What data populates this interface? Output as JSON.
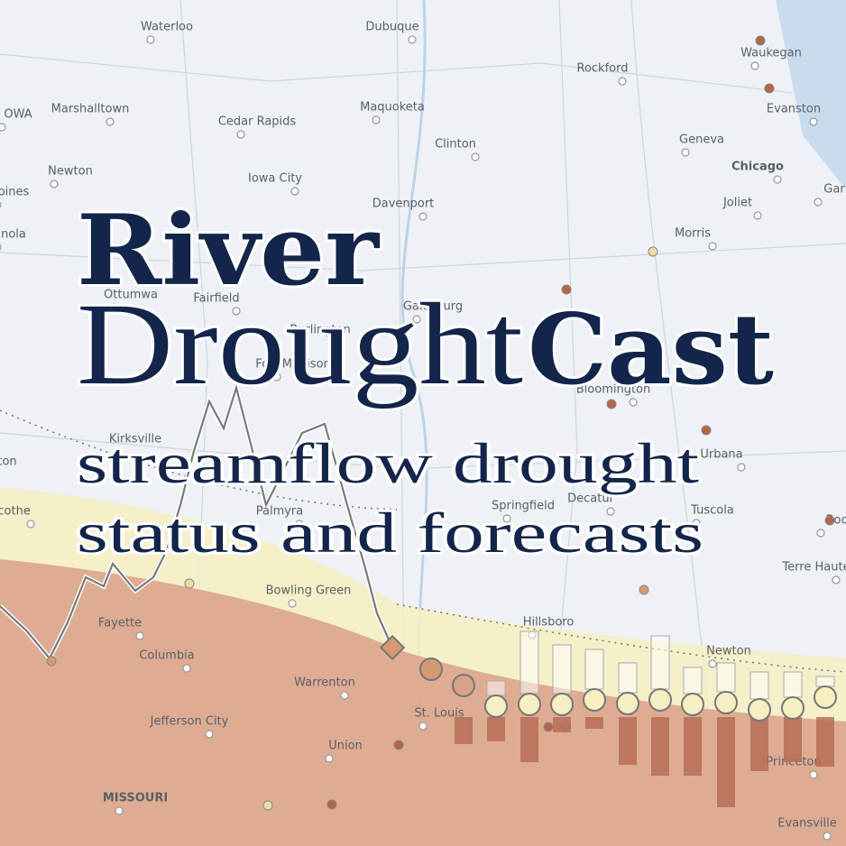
{
  "title": {
    "river": "River",
    "drought": "Drought",
    "cast": "Cast"
  },
  "subtitle": [
    "streamflow drought",
    "status and forecasts"
  ],
  "map_labels": [
    "Waterloo",
    "Dubuque",
    "Waukegan",
    "Rockford",
    "OWA",
    "Marshalltown",
    "Maquoketa",
    "Evanston",
    "Cedar Rapids",
    "Clinton",
    "Geneva",
    "Chicago",
    "Newton",
    "Iowa City",
    "oines",
    "Davenport",
    "Gar",
    "Joliet",
    "nola",
    "Morris",
    "Ottumwa",
    "Fairfield",
    "Galesburg",
    "Burlington",
    "Fort Madison",
    "Bloomington",
    "Kirksville",
    "Urbana",
    "ton",
    "Palmyra",
    "Springfield",
    "Decatur",
    "Tuscola",
    "licothe",
    "Boo",
    "Terre Haute",
    "Bowling Green",
    "Fayette",
    "Hillsboro",
    "Columbia",
    "Newton",
    "Warrenton",
    "St. Louis",
    "Jefferson City",
    "Union",
    "Princeton",
    "MISSOURI",
    "Evansville"
  ]
}
